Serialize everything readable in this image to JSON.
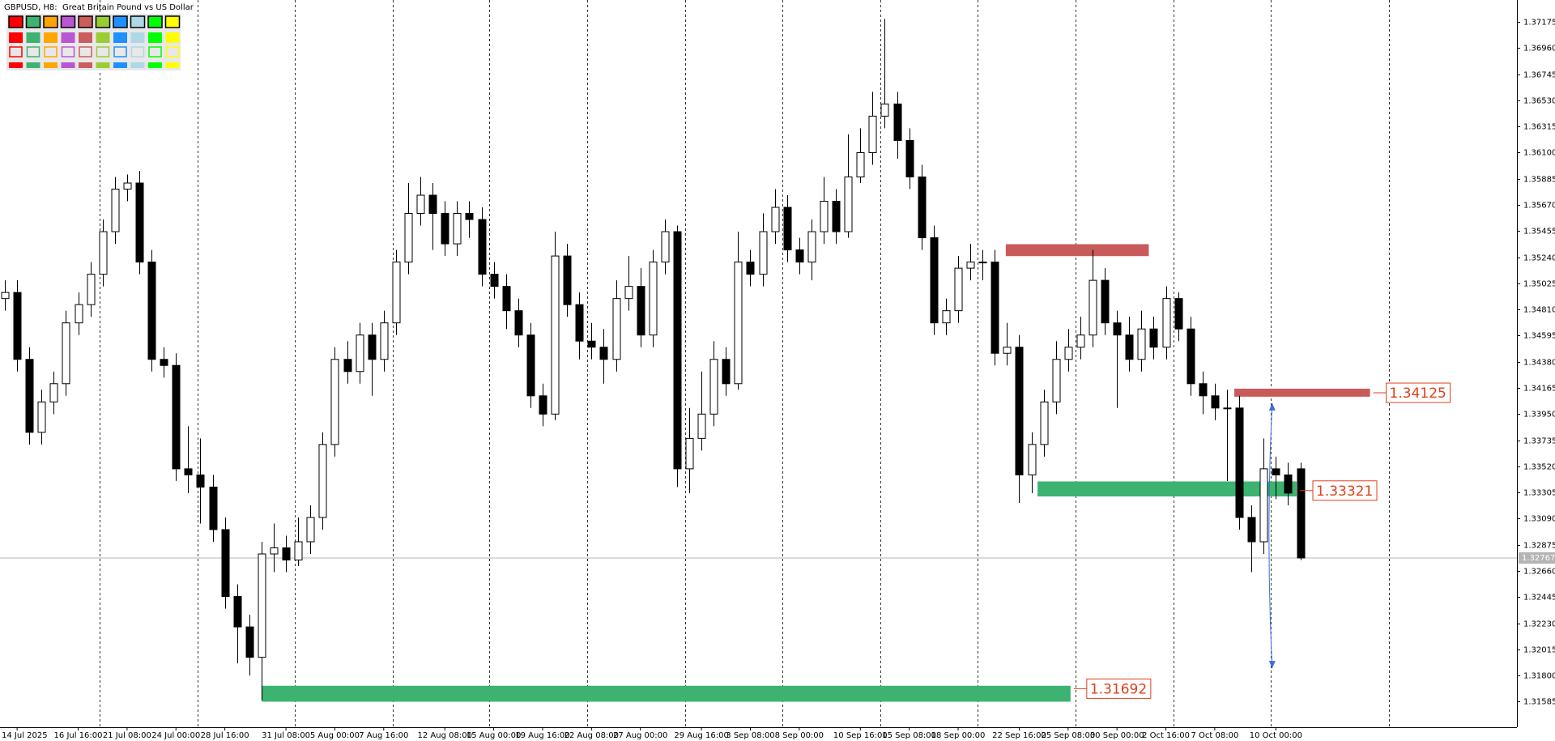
{
  "chart_data": {
    "type": "candlestick",
    "title": "GBPUSD, H8:  Great Britain Pound vs US Dollar",
    "categories": [
      null,
      "14 Jul 2025",
      null,
      null,
      null,
      null,
      "16 Jul 16:00",
      null,
      null,
      null,
      "21 Jul 08:00",
      null,
      null,
      null,
      "24 Jul 00:00",
      null,
      null,
      null,
      "28 Jul 16:00",
      null,
      null,
      null,
      null,
      "31 Jul 08:00",
      null,
      null,
      null,
      "5 Aug 00:00",
      null,
      null,
      null,
      "7 Aug 16:00",
      null,
      null,
      null,
      null,
      "12 Aug 08:00",
      null,
      null,
      null,
      "15 Aug 00:00",
      null,
      null,
      null,
      "19 Aug 16:00",
      null,
      null,
      null,
      "22 Aug 08:00",
      null,
      null,
      null,
      "27 Aug 00:00",
      null,
      null,
      null,
      null,
      "29 Aug 16:00",
      null,
      null,
      null,
      "3 Sep 08:00",
      null,
      null,
      null,
      "8 Sep 00:00",
      null,
      null,
      null,
      null,
      "10 Sep 16:00",
      null,
      null,
      null,
      "15 Sep 08:00",
      null,
      null,
      null,
      "18 Sep 00:00",
      null,
      null,
      null,
      null,
      "22 Sep 16:00",
      null,
      null,
      null,
      "25 Sep 08:00",
      null,
      null,
      null,
      "30 Sep 00:00",
      null,
      null,
      null,
      "2 Oct 16:00",
      null,
      null,
      null,
      "7 Oct 08:00",
      null,
      null,
      null,
      null,
      "10 Oct 00:00",
      null,
      null
    ],
    "open": [
      1.349,
      1.3495,
      1.344,
      1.338,
      1.3405,
      1.342,
      1.347,
      1.3485,
      1.351,
      1.3545,
      1.358,
      1.3585,
      1.352,
      1.344,
      1.3435,
      1.335,
      1.3345,
      1.3335,
      1.33,
      1.3245,
      1.322,
      1.3195,
      1.328,
      1.3285,
      1.3275,
      1.329,
      1.331,
      1.337,
      1.344,
      1.343,
      1.346,
      1.344,
      1.347,
      1.352,
      1.356,
      1.3575,
      1.356,
      1.3535,
      1.356,
      1.3555,
      1.351,
      1.35,
      1.348,
      1.346,
      1.341,
      1.3395,
      1.3525,
      1.3485,
      1.3455,
      1.345,
      1.344,
      1.349,
      1.35,
      1.346,
      1.352,
      1.3545,
      1.335,
      1.3375,
      1.3395,
      1.344,
      1.342,
      1.352,
      1.351,
      1.3545,
      1.3565,
      1.353,
      1.352,
      1.3545,
      1.357,
      1.3545,
      1.359,
      1.361,
      1.364,
      1.365,
      1.362,
      1.359,
      1.354,
      1.347,
      1.348,
      1.3515,
      1.352,
      1.352,
      1.3445,
      1.345,
      1.3345,
      1.337,
      1.3405,
      1.344,
      1.345,
      1.346,
      1.3505,
      1.347,
      1.346,
      1.344,
      1.3465,
      1.345,
      1.349,
      1.3465,
      1.342,
      1.341,
      1.34,
      1.34,
      1.331,
      1.329,
      1.335,
      1.3345,
      1.335
    ],
    "high": [
      1.3505,
      1.3505,
      1.345,
      1.3415,
      1.343,
      1.348,
      1.3495,
      1.352,
      1.3555,
      1.359,
      1.3592,
      1.3595,
      1.353,
      1.345,
      1.3445,
      1.3385,
      1.3375,
      1.3345,
      1.331,
      1.3255,
      1.323,
      1.329,
      1.3305,
      1.3295,
      1.331,
      1.332,
      1.338,
      1.345,
      1.3455,
      1.347,
      1.347,
      1.348,
      1.353,
      1.3585,
      1.359,
      1.3585,
      1.357,
      1.357,
      1.357,
      1.3565,
      1.352,
      1.351,
      1.349,
      1.347,
      1.342,
      1.3545,
      1.3535,
      1.3495,
      1.347,
      1.3465,
      1.3505,
      1.3525,
      1.3515,
      1.353,
      1.3555,
      1.355,
      1.34,
      1.343,
      1.3455,
      1.345,
      1.3545,
      1.353,
      1.356,
      1.358,
      1.3575,
      1.354,
      1.3555,
      1.359,
      1.358,
      1.3625,
      1.363,
      1.366,
      1.372,
      1.366,
      1.363,
      1.36,
      1.355,
      1.349,
      1.3525,
      1.3535,
      1.353,
      1.353,
      1.347,
      1.346,
      1.338,
      1.3415,
      1.3455,
      1.3465,
      1.3475,
      1.353,
      1.3515,
      1.348,
      1.3475,
      1.348,
      1.3475,
      1.35,
      1.3495,
      1.3475,
      1.343,
      1.342,
      1.3415,
      1.341,
      1.332,
      1.3375,
      1.336,
      1.3355,
      1.3355
    ],
    "low": [
      1.348,
      1.343,
      1.337,
      1.337,
      1.3395,
      1.341,
      1.346,
      1.3475,
      1.35,
      1.3535,
      1.357,
      1.351,
      1.343,
      1.3425,
      1.334,
      1.333,
      1.3305,
      1.329,
      1.3235,
      1.319,
      1.318,
      1.316,
      1.3265,
      1.3265,
      1.327,
      1.328,
      1.33,
      1.336,
      1.342,
      1.342,
      1.341,
      1.343,
      1.346,
      1.351,
      1.355,
      1.353,
      1.3525,
      1.3525,
      1.354,
      1.35,
      1.349,
      1.3465,
      1.345,
      1.34,
      1.3385,
      1.339,
      1.3475,
      1.344,
      1.344,
      1.342,
      1.343,
      1.348,
      1.345,
      1.345,
      1.351,
      1.3335,
      1.333,
      1.3365,
      1.3385,
      1.341,
      1.3415,
      1.35,
      1.35,
      1.3535,
      1.352,
      1.351,
      1.3505,
      1.3535,
      1.3535,
      1.354,
      1.3585,
      1.36,
      1.363,
      1.3605,
      1.358,
      1.353,
      1.346,
      1.346,
      1.347,
      1.3505,
      1.3505,
      1.3435,
      1.3435,
      1.3322,
      1.333,
      1.336,
      1.3395,
      1.343,
      1.344,
      1.345,
      1.346,
      1.34,
      1.343,
      1.343,
      1.344,
      1.344,
      1.3455,
      1.341,
      1.3395,
      1.339,
      1.334,
      1.33,
      1.3265,
      1.328,
      1.3325,
      1.332,
      1.3275
    ],
    "close": [
      1.3495,
      1.344,
      1.338,
      1.3405,
      1.342,
      1.347,
      1.3485,
      1.351,
      1.3545,
      1.358,
      1.3585,
      1.352,
      1.344,
      1.3435,
      1.335,
      1.3345,
      1.3335,
      1.33,
      1.3245,
      1.322,
      1.3195,
      1.328,
      1.3285,
      1.3275,
      1.329,
      1.331,
      1.337,
      1.344,
      1.343,
      1.346,
      1.344,
      1.347,
      1.352,
      1.356,
      1.3575,
      1.356,
      1.3535,
      1.356,
      1.3555,
      1.351,
      1.35,
      1.348,
      1.346,
      1.341,
      1.3395,
      1.3525,
      1.3485,
      1.3455,
      1.345,
      1.344,
      1.349,
      1.35,
      1.346,
      1.352,
      1.3545,
      1.335,
      1.3375,
      1.3395,
      1.344,
      1.342,
      1.352,
      1.351,
      1.3545,
      1.3565,
      1.353,
      1.352,
      1.3545,
      1.357,
      1.3545,
      1.359,
      1.361,
      1.364,
      1.365,
      1.362,
      1.359,
      1.354,
      1.347,
      1.348,
      1.3515,
      1.352,
      1.352,
      1.3445,
      1.345,
      1.3345,
      1.337,
      1.3405,
      1.344,
      1.345,
      1.346,
      1.3505,
      1.347,
      1.346,
      1.344,
      1.3465,
      1.345,
      1.349,
      1.3465,
      1.342,
      1.341,
      1.34,
      1.34,
      1.331,
      1.329,
      1.335,
      1.3345,
      1.333,
      1.32767
    ],
    "up_color": "#ffffff",
    "down_color": "#000000",
    "ylim": [
      1.31375,
      1.37355
    ],
    "yticks": [
      1.37175,
      {
        "value": 1.3696,
        "label": "1.36960"
      },
      1.36745,
      {
        "value": 1.3653,
        "label": "1.36530"
      },
      1.36315,
      {
        "value": 1.361,
        "label": "1.36100"
      },
      1.35885,
      {
        "value": 1.3567,
        "label": "1.35670"
      },
      1.35455,
      {
        "value": 1.3524,
        "label": "1.35240"
      },
      1.35025,
      {
        "value": 1.3481,
        "label": "1.34810"
      },
      1.34595,
      {
        "value": 1.3438,
        "label": "1.34380"
      },
      1.34165,
      {
        "value": 1.3395,
        "label": "1.33950"
      },
      1.33735,
      {
        "value": 1.3352,
        "label": "1.33520"
      },
      1.33305,
      {
        "value": 1.3309,
        "label": "1.33090"
      },
      1.32875,
      {
        "value": 1.3266,
        "label": "1.32660"
      },
      1.32445,
      {
        "value": 1.3223,
        "label": "1.32230"
      },
      1.32015,
      {
        "value": 1.318,
        "label": "1.31800"
      },
      1.31585
    ],
    "last_price": 1.32767,
    "zones": [
      {
        "start": 81.9,
        "end": 93.6,
        "high": 1.35347,
        "low": 1.35249,
        "color": "#c85a5a"
      },
      {
        "start": 100.6,
        "end": 111.7,
        "high": 1.34159,
        "low": 1.34093,
        "color": "#c85a5a",
        "value": 1.34125
      },
      {
        "start": 84.5,
        "end": 105.7,
        "high": 1.33396,
        "low": 1.33273,
        "color": "#3cb371",
        "value": 1.33321
      },
      {
        "start": 21,
        "end": 87.2,
        "high": 1.31716,
        "low": 1.31585,
        "color": "#3cb371",
        "value": 1.31692
      }
    ],
    "arrow": {
      "at": 103.7,
      "from": 1.3404,
      "to": 1.3186,
      "color": "#3a6fd8"
    }
  }
}
